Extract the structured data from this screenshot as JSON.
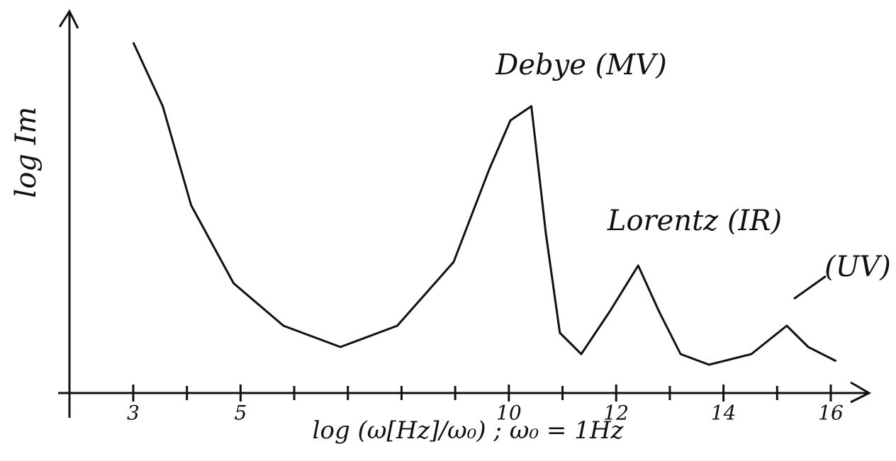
{
  "chart_data": {
    "type": "line",
    "y_label": "log Im",
    "x_label": "log (ω[Hz]/ω₀) ; ω₀ = 1Hz",
    "annotations": [
      "Debye (MV)",
      "Lorentz (IR)",
      "(UV)"
    ],
    "x": [
      3.0,
      3.55,
      4.08,
      4.87,
      5.8,
      6.86,
      7.92,
      8.97,
      9.63,
      10.03,
      10.42,
      10.69,
      10.95,
      11.35,
      11.88,
      12.41,
      12.8,
      13.2,
      13.73,
      14.52,
      15.18,
      15.58,
      16.1
    ],
    "series": [
      {
        "color": "#111111",
        "values": [
          9.9,
          8.1,
          5.3,
          3.1,
          1.9,
          1.3,
          1.9,
          3.7,
          6.3,
          7.7,
          8.1,
          4.5,
          1.7,
          1.1,
          2.3,
          3.6,
          2.3,
          1.1,
          0.8,
          1.1,
          1.9,
          1.3,
          0.9
        ]
      }
    ],
    "xlim": [
      1.6,
      16.7
    ],
    "ylim": [
      0,
      10.7
    ],
    "xticks": [
      3,
      5,
      10,
      12,
      14,
      16
    ],
    "xminorticks": [
      4,
      6,
      7,
      8,
      9,
      11,
      13,
      15
    ]
  }
}
